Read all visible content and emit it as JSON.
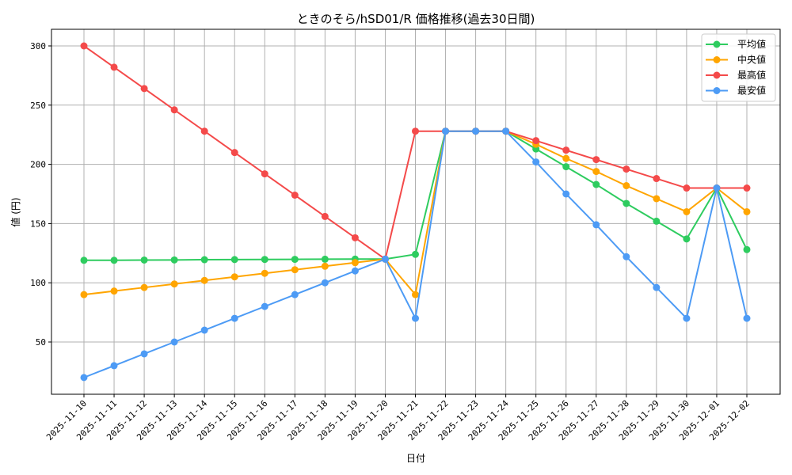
{
  "chart_data": {
    "type": "line",
    "title": "ときのそら/hSD01/R 価格推移(過去30日間)",
    "xlabel": "日付",
    "ylabel": "値 (円)",
    "ylim": [
      13,
      313
    ],
    "yticks": [
      50,
      100,
      150,
      200,
      250,
      300
    ],
    "grid": true,
    "legend_position": "upper right",
    "categories": [
      "2025-11-10",
      "2025-11-11",
      "2025-11-12",
      "2025-11-13",
      "2025-11-14",
      "2025-11-15",
      "2025-11-16",
      "2025-11-17",
      "2025-11-18",
      "2025-11-19",
      "2025-11-20",
      "2025-11-21",
      "2025-11-22",
      "2025-11-23",
      "2025-11-24",
      "2025-11-25",
      "2025-11-26",
      "2025-11-27",
      "2025-11-28",
      "2025-11-29",
      "2025-11-30",
      "2025-12-01",
      "2025-12-02"
    ],
    "series": [
      {
        "name": "平均値",
        "color": "#2ecc5f",
        "values": [
          119,
          119,
          119.2,
          119.3,
          119.5,
          119.6,
          119.7,
          119.8,
          119.9,
          120,
          120,
          124,
          228,
          228,
          228,
          213,
          198,
          183,
          167,
          152,
          137,
          180,
          128
        ]
      },
      {
        "name": "中央値",
        "color": "#ffa500",
        "values": [
          90,
          93,
          96,
          99,
          102,
          105,
          108,
          111,
          114,
          117,
          120,
          90,
          228,
          228,
          228,
          217,
          205,
          194,
          182,
          171,
          160,
          180,
          160
        ]
      },
      {
        "name": "最高値",
        "color": "#f44a4a",
        "values": [
          300,
          282,
          264,
          246,
          228,
          210,
          192,
          174,
          156,
          138,
          120,
          228,
          228,
          228,
          228,
          220,
          212,
          204,
          196,
          188,
          180,
          180,
          180
        ]
      },
      {
        "name": "最安値",
        "color": "#4d9bf5",
        "values": [
          20,
          30,
          40,
          50,
          60,
          70,
          80,
          90,
          100,
          110,
          120,
          70,
          228,
          228,
          228,
          202,
          175,
          149,
          122,
          96,
          70,
          180,
          70
        ]
      }
    ]
  }
}
